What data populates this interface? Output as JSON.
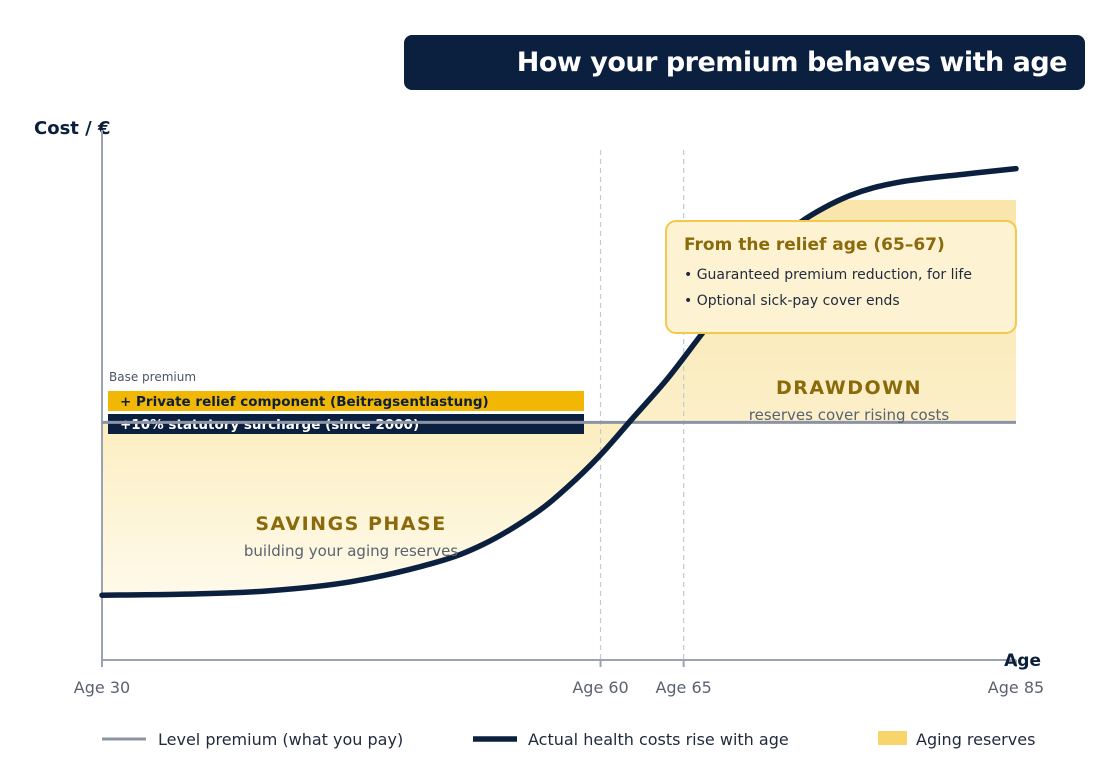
{
  "title": "How your premium behaves with age",
  "colors": {
    "navy": "#0b1f3f",
    "grey_line": "#8a94a6",
    "gold": "#f2b705",
    "reserve_fill": "#f7d56a",
    "callout_fill": "#fdf3d3",
    "callout_border": "#f2c94c",
    "phase_text": "#8a6a0a"
  },
  "chart_data": {
    "type": "line",
    "ylabel": "Cost / €",
    "xlabel": "Age",
    "x_ticks": [
      {
        "age": 30,
        "label": "Age 30"
      },
      {
        "age": 60,
        "label": "Age 60"
      },
      {
        "age": 65,
        "label": "Age 65"
      },
      {
        "age": 85,
        "label": "Age 85"
      }
    ],
    "xlim": [
      30,
      85
    ],
    "ylim": [
      0,
      100
    ],
    "series": [
      {
        "name": "Level premium (what you pay)",
        "style": "grey-line",
        "x": [
          30,
          85
        ],
        "y": [
          44,
          44
        ]
      },
      {
        "name": "Actual health costs rise with age",
        "style": "navy-thick-line",
        "x": [
          30,
          35,
          40,
          45,
          50,
          53,
          56,
          58,
          60,
          62,
          64,
          66,
          68,
          70,
          72,
          75,
          78,
          82,
          85
        ],
        "y": [
          12,
          12.2,
          12.8,
          14.5,
          18,
          21.5,
          27,
          32,
          38,
          45,
          52,
          60,
          68,
          75,
          81,
          86,
          88.5,
          90,
          91
        ]
      }
    ],
    "base_stack": {
      "label": "Base premium",
      "layers": [
        {
          "text": "+ Private relief component (Beitragsentlastung)",
          "color": "#f2b705",
          "text_color": "#0b1f3a"
        },
        {
          "text": "+10% statutory surcharge (since 2000)",
          "color": "#0b1f3f",
          "text_color": "#ffffff"
        }
      ]
    },
    "annotations": {
      "savings": {
        "title": "SAVINGS PHASE",
        "subtitle": "building your aging reserves"
      },
      "drawdown": {
        "title": "DRAWDOWN",
        "subtitle": "reserves cover rising costs"
      },
      "callout": {
        "title": "From the relief age (65–67)",
        "bullets": [
          "• Guaranteed premium reduction, for life",
          "• Optional sick-pay cover ends"
        ]
      }
    },
    "legend": [
      {
        "label": "Level premium (what you pay)",
        "kind": "grey-line"
      },
      {
        "label": "Actual health costs rise with age",
        "kind": "navy-line"
      },
      {
        "label": "Aging reserves",
        "kind": "gold-swatch"
      }
    ],
    "legend_position": "bottom"
  }
}
